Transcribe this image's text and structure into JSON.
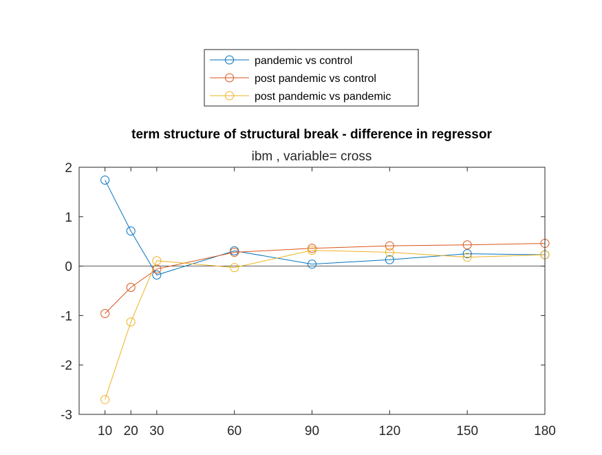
{
  "chart_data": {
    "type": "line",
    "title": "term structure of structural break - difference in regressor",
    "subtitle": "ibm  , variable= cross",
    "xlabel": "",
    "ylabel": "",
    "x": [
      10,
      20,
      30,
      60,
      90,
      120,
      150,
      180
    ],
    "xticks": [
      10,
      20,
      30,
      60,
      90,
      120,
      150,
      180
    ],
    "yticks": [
      -3,
      -2,
      -1,
      0,
      1,
      2
    ],
    "xlim": [
      0,
      180
    ],
    "ylim": [
      -3,
      2
    ],
    "grid": false,
    "zero_line": true,
    "marker": "open-circle",
    "legend": {
      "placement": "outside-top"
    },
    "series": [
      {
        "name": "pandemic vs control",
        "color": "#0072BD",
        "values": [
          1.74,
          0.71,
          -0.18,
          0.31,
          0.04,
          0.13,
          0.25,
          0.23
        ]
      },
      {
        "name": "post pandemic vs control",
        "color": "#D95319",
        "values": [
          -0.96,
          -0.43,
          -0.06,
          0.28,
          0.36,
          0.41,
          0.43,
          0.46
        ]
      },
      {
        "name": "post pandemic vs pandemic",
        "color": "#EDB120",
        "values": [
          -2.7,
          -1.13,
          0.11,
          -0.03,
          0.32,
          0.28,
          0.18,
          0.23
        ]
      }
    ]
  }
}
